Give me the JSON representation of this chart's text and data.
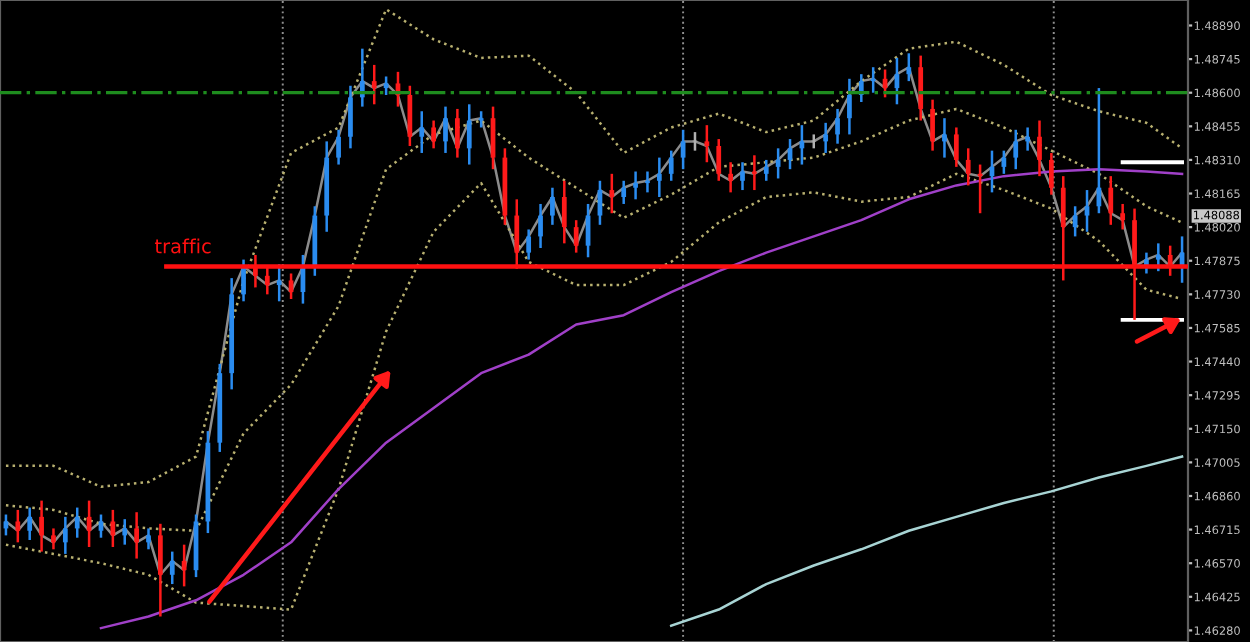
{
  "chart_data": {
    "type": "candlestick",
    "categories": [
      null,
      null,
      null,
      null,
      null,
      null,
      null,
      null,
      null,
      null,
      null,
      null,
      null,
      null,
      null,
      null,
      null,
      null,
      null,
      null,
      null,
      null,
      null,
      null,
      null,
      null,
      null,
      null,
      null,
      null,
      null,
      null,
      null,
      null,
      null,
      null,
      null,
      null,
      null,
      null,
      null,
      null,
      null,
      null,
      null,
      null,
      null,
      null,
      null,
      null,
      null,
      null,
      null,
      null,
      null,
      null,
      null,
      null,
      null,
      null,
      null,
      null,
      null,
      null,
      null,
      null,
      null,
      null,
      null,
      null,
      null,
      null,
      null,
      null,
      null,
      null,
      null,
      null,
      null,
      null,
      null,
      null,
      null,
      null,
      null,
      null,
      null,
      null,
      null,
      null,
      null,
      null,
      null,
      null,
      null,
      null,
      null,
      null,
      null,
      null
    ],
    "ohlc": [
      [
        1.4672,
        1.4678,
        1.4669,
        1.4675
      ],
      [
        1.4675,
        1.468,
        1.4666,
        1.4671
      ],
      [
        1.4671,
        1.4681,
        1.4667,
        1.4677
      ],
      [
        1.4677,
        1.4684,
        1.4662,
        1.4669
      ],
      [
        1.4669,
        1.4672,
        1.4663,
        1.4666
      ],
      [
        1.4666,
        1.4677,
        1.4661,
        1.4672
      ],
      [
        1.4672,
        1.4681,
        1.4668,
        1.4677
      ],
      [
        1.4677,
        1.4684,
        1.4664,
        1.4671
      ],
      [
        1.4671,
        1.4678,
        1.4668,
        1.4675
      ],
      [
        1.4675,
        1.468,
        1.4664,
        1.4669
      ],
      [
        1.4669,
        1.4676,
        1.4665,
        1.4672
      ],
      [
        1.4672,
        1.4679,
        1.4659,
        1.4666
      ],
      [
        1.4666,
        1.4672,
        1.4663,
        1.4669
      ],
      [
        1.4669,
        1.4674,
        1.4634,
        1.4652
      ],
      [
        1.4652,
        1.4662,
        1.4648,
        1.4658
      ],
      [
        1.4658,
        1.4665,
        1.4647,
        1.4654
      ],
      [
        1.4654,
        1.4678,
        1.4651,
        1.4675
      ],
      [
        1.4675,
        1.4714,
        1.467,
        1.4709
      ],
      [
        1.4709,
        1.4743,
        1.4705,
        1.4739
      ],
      [
        1.4739,
        1.478,
        1.4732,
        1.4773
      ],
      [
        1.4773,
        1.4788,
        1.477,
        1.4785
      ],
      [
        1.4785,
        1.479,
        1.4776,
        1.4781
      ],
      [
        1.4781,
        1.4785,
        1.4773,
        1.4777
      ],
      [
        1.4777,
        1.4786,
        1.477,
        1.4779
      ],
      [
        1.4779,
        1.4782,
        1.4771,
        1.4774
      ],
      [
        1.4774,
        1.479,
        1.4769,
        1.4785
      ],
      [
        1.4785,
        1.4811,
        1.4781,
        1.4807
      ],
      [
        1.4807,
        1.4839,
        1.48,
        1.4832
      ],
      [
        1.4832,
        1.4844,
        1.4829,
        1.4841
      ],
      [
        1.4841,
        1.4863,
        1.4836,
        1.4858
      ],
      [
        1.4858,
        1.4879,
        1.4854,
        1.4865
      ],
      [
        1.4865,
        1.4872,
        1.4855,
        1.4862
      ],
      [
        1.4862,
        1.4867,
        1.4859,
        1.4864
      ],
      [
        1.4864,
        1.4869,
        1.4854,
        1.4859
      ],
      [
        1.4859,
        1.4863,
        1.4837,
        1.4841
      ],
      [
        1.4841,
        1.4852,
        1.4834,
        1.4845
      ],
      [
        1.4845,
        1.4848,
        1.4836,
        1.4839
      ],
      [
        1.4839,
        1.4854,
        1.4834,
        1.4849
      ],
      [
        1.4849,
        1.4853,
        1.4832,
        1.4836
      ],
      [
        1.4836,
        1.4855,
        1.4829,
        1.4848
      ],
      [
        1.4848,
        1.4852,
        1.4845,
        1.4849
      ],
      [
        1.4849,
        1.4854,
        1.4827,
        1.4832
      ],
      [
        1.4832,
        1.4836,
        1.4803,
        1.4807
      ],
      [
        1.4807,
        1.4814,
        1.4784,
        1.4791
      ],
      [
        1.4791,
        1.4801,
        1.4788,
        1.4798
      ],
      [
        1.4798,
        1.4812,
        1.4793,
        1.4807
      ],
      [
        1.4807,
        1.4819,
        1.4803,
        1.4815
      ],
      [
        1.4815,
        1.4822,
        1.4795,
        1.4802
      ],
      [
        1.4802,
        1.4805,
        1.4791,
        1.4794
      ],
      [
        1.4794,
        1.4812,
        1.4789,
        1.4807
      ],
      [
        1.4807,
        1.4822,
        1.4803,
        1.4818
      ],
      [
        1.4818,
        1.4825,
        1.4808,
        1.4815
      ],
      [
        1.4815,
        1.4822,
        1.4812,
        1.4819
      ],
      [
        1.4819,
        1.4826,
        1.4814,
        1.4821
      ],
      [
        1.4821,
        1.4826,
        1.4817,
        1.4822
      ],
      [
        1.4822,
        1.4832,
        1.4815,
        1.4825
      ],
      [
        1.4825,
        1.4835,
        1.4822,
        1.4832
      ],
      [
        1.4832,
        1.4844,
        1.4827,
        1.4839
      ],
      [
        1.4839,
        1.4843,
        1.4835,
        1.4839
      ],
      [
        1.4839,
        1.4846,
        1.483,
        1.4837
      ],
      [
        1.4837,
        1.484,
        1.4822,
        1.4825
      ],
      [
        1.4825,
        1.483,
        1.4817,
        1.4822
      ],
      [
        1.4822,
        1.483,
        1.4818,
        1.4826
      ],
      [
        1.4826,
        1.4833,
        1.4818,
        1.4825
      ],
      [
        1.4825,
        1.4831,
        1.4822,
        1.4828
      ],
      [
        1.4828,
        1.4836,
        1.4823,
        1.4831
      ],
      [
        1.4831,
        1.484,
        1.4827,
        1.4836
      ],
      [
        1.4836,
        1.4846,
        1.4829,
        1.4839
      ],
      [
        1.4839,
        1.4842,
        1.4836,
        1.4839
      ],
      [
        1.4839,
        1.4847,
        1.4834,
        1.4842
      ],
      [
        1.4842,
        1.4853,
        1.4838,
        1.4849
      ],
      [
        1.4849,
        1.4866,
        1.4842,
        1.4859
      ],
      [
        1.4859,
        1.4868,
        1.4856,
        1.4865
      ],
      [
        1.4865,
        1.4871,
        1.486,
        1.4866
      ],
      [
        1.4866,
        1.487,
        1.4858,
        1.4862
      ],
      [
        1.4862,
        1.4875,
        1.4855,
        1.4868
      ],
      [
        1.4868,
        1.4877,
        1.4865,
        1.4871
      ],
      [
        1.4871,
        1.4876,
        1.4848,
        1.4853
      ],
      [
        1.4853,
        1.4857,
        1.4835,
        1.4839
      ],
      [
        1.4839,
        1.4849,
        1.4832,
        1.4842
      ],
      [
        1.4842,
        1.4845,
        1.4828,
        1.4831
      ],
      [
        1.4831,
        1.4836,
        1.482,
        1.4825
      ],
      [
        1.4825,
        1.4829,
        1.4808,
        1.4824
      ],
      [
        1.4824,
        1.4835,
        1.4817,
        1.4828
      ],
      [
        1.4828,
        1.4835,
        1.4825,
        1.4832
      ],
      [
        1.4832,
        1.4844,
        1.4827,
        1.4839
      ],
      [
        1.4839,
        1.4845,
        1.4835,
        1.4841
      ],
      [
        1.4841,
        1.4848,
        1.4824,
        1.4831
      ],
      [
        1.4831,
        1.4834,
        1.4816,
        1.4819
      ],
      [
        1.4819,
        1.4824,
        1.4779,
        1.4802
      ],
      [
        1.4802,
        1.4811,
        1.4798,
        1.4807
      ],
      [
        1.4807,
        1.4818,
        1.48,
        1.4811
      ],
      [
        1.4811,
        1.4862,
        1.4808,
        1.4819
      ],
      [
        1.4819,
        1.4824,
        1.4803,
        1.4808
      ],
      [
        1.4808,
        1.4812,
        1.4801,
        1.4805
      ],
      [
        1.4805,
        1.481,
        1.4762,
        1.4785
      ],
      [
        1.4785,
        1.4791,
        1.4782,
        1.4788
      ],
      [
        1.4788,
        1.4795,
        1.4783,
        1.479
      ],
      [
        1.479,
        1.4794,
        1.4781,
        1.4785
      ],
      [
        1.4785,
        1.4798,
        1.4778,
        1.4791
      ]
    ],
    "series": [
      {
        "type": "line",
        "color": "#8c8c8c",
        "line_style": "solid",
        "values": [
          1.4675,
          1.4671,
          1.4677,
          1.4669,
          1.4666,
          1.4672,
          1.4677,
          1.4671,
          1.4675,
          1.4669,
          1.4672,
          1.4666,
          1.4669,
          1.4652,
          1.4658,
          1.4654,
          1.4675,
          1.4709,
          1.4739,
          1.4773,
          1.4785,
          1.4781,
          1.4777,
          1.4779,
          1.4774,
          1.4785,
          1.4807,
          1.4832,
          1.4841,
          1.4858,
          1.4865,
          1.4862,
          1.4864,
          1.4859,
          1.4841,
          1.4845,
          1.4839,
          1.4849,
          1.4836,
          1.4848,
          1.4849,
          1.4832,
          1.4807,
          1.4791,
          1.4798,
          1.4807,
          1.4815,
          1.4802,
          1.4794,
          1.4807,
          1.4818,
          1.4815,
          1.4819,
          1.4821,
          1.4822,
          1.4825,
          1.4832,
          1.4839,
          1.4839,
          1.4837,
          1.4825,
          1.4822,
          1.4826,
          1.4825,
          1.4828,
          1.4831,
          1.4836,
          1.4839,
          1.4839,
          1.4842,
          1.4849,
          1.4859,
          1.4865,
          1.4866,
          1.4862,
          1.4868,
          1.4871,
          1.4853,
          1.4839,
          1.4842,
          1.4831,
          1.4825,
          1.4824,
          1.4828,
          1.4832,
          1.4839,
          1.4841,
          1.4831,
          1.4819,
          1.4802,
          1.4807,
          1.4811,
          1.4819,
          1.4808,
          1.4805,
          1.4785,
          1.4788,
          1.479,
          1.4785,
          1.4791
        ]
      },
      {
        "type": "line",
        "color": "#b8b070",
        "line_style": "dotted",
        "values": [
          1.4699,
          null,
          null,
          null,
          1.4699,
          null,
          null,
          null,
          1.469,
          null,
          null,
          null,
          1.4692,
          null,
          null,
          null,
          1.4703,
          null,
          null,
          null,
          1.4779,
          null,
          null,
          null,
          1.4834,
          null,
          null,
          null,
          1.4845,
          null,
          null,
          null,
          1.4896,
          null,
          null,
          null,
          1.4883,
          null,
          null,
          null,
          1.4875,
          null,
          null,
          null,
          1.4876,
          null,
          null,
          null,
          1.486,
          null,
          null,
          null,
          1.4834,
          null,
          null,
          null,
          1.4845,
          null,
          null,
          null,
          1.4851,
          null,
          null,
          null,
          1.4843,
          null,
          null,
          null,
          1.4848,
          null,
          null,
          null,
          1.4865,
          null,
          null,
          null,
          1.4879,
          null,
          null,
          null,
          1.4882,
          null,
          null,
          null,
          1.4872,
          null,
          null,
          null,
          1.4859,
          null,
          null,
          null,
          1.4852,
          null,
          null,
          null,
          1.4847,
          null,
          null,
          1.4836
        ]
      },
      {
        "type": "line",
        "color": "#b8b070",
        "line_style": "dotted",
        "values": [
          1.4682,
          null,
          null,
          null,
          1.468,
          null,
          null,
          null,
          1.4674,
          null,
          null,
          null,
          1.4672,
          null,
          null,
          null,
          1.4671,
          null,
          null,
          null,
          1.4713,
          null,
          null,
          null,
          1.4734,
          null,
          null,
          null,
          1.4768,
          null,
          null,
          null,
          1.4827,
          null,
          null,
          null,
          1.4842,
          null,
          null,
          null,
          1.4848,
          null,
          null,
          null,
          1.4832,
          null,
          null,
          null,
          1.4819,
          null,
          null,
          null,
          1.4806,
          null,
          null,
          null,
          1.4816,
          null,
          null,
          null,
          1.4828,
          null,
          null,
          null,
          1.483,
          null,
          null,
          null,
          1.4832,
          null,
          null,
          null,
          1.4839,
          null,
          null,
          null,
          1.4848,
          null,
          null,
          null,
          1.4853,
          null,
          null,
          null,
          1.4845,
          null,
          null,
          null,
          1.4835,
          null,
          null,
          null,
          1.4825,
          null,
          null,
          null,
          1.4811,
          null,
          null,
          1.4804
        ]
      },
      {
        "type": "line",
        "color": "#b8b070",
        "line_style": "dotted",
        "values": [
          1.4665,
          null,
          null,
          null,
          1.4661,
          null,
          null,
          null,
          1.4657,
          null,
          null,
          null,
          1.4652,
          null,
          null,
          null,
          1.464,
          null,
          null,
          null,
          null,
          null,
          null,
          null,
          1.4637,
          null,
          null,
          null,
          1.4689,
          null,
          null,
          null,
          1.4757,
          null,
          null,
          null,
          1.48,
          null,
          null,
          null,
          1.4821,
          null,
          null,
          null,
          1.4787,
          null,
          null,
          null,
          1.4777,
          null,
          null,
          null,
          1.4777,
          null,
          null,
          null,
          1.4787,
          null,
          null,
          null,
          1.4804,
          null,
          null,
          null,
          1.4815,
          null,
          null,
          null,
          1.4817,
          null,
          null,
          null,
          1.4813,
          null,
          null,
          null,
          1.4815,
          null,
          null,
          null,
          1.4825,
          null,
          null,
          null,
          1.4818,
          null,
          null,
          null,
          1.481,
          null,
          null,
          null,
          1.4796,
          null,
          null,
          null,
          1.4775,
          null,
          null,
          1.4771
        ]
      },
      {
        "type": "line",
        "color": "#a040c8",
        "line_style": "solid",
        "values": [
          null,
          null,
          null,
          null,
          null,
          null,
          null,
          null,
          1.4629,
          null,
          null,
          null,
          1.4634,
          null,
          null,
          null,
          1.4641,
          null,
          null,
          null,
          1.4652,
          null,
          null,
          null,
          1.4666,
          null,
          null,
          null,
          1.4689,
          null,
          null,
          null,
          1.4709,
          null,
          null,
          null,
          1.4724,
          null,
          null,
          null,
          1.4739,
          null,
          null,
          null,
          1.4747,
          null,
          null,
          null,
          1.476,
          null,
          null,
          null,
          1.4764,
          null,
          null,
          null,
          1.4774,
          null,
          null,
          null,
          1.4783,
          null,
          null,
          null,
          1.4791,
          null,
          null,
          null,
          1.4798,
          null,
          null,
          null,
          1.4805,
          null,
          null,
          null,
          1.4814,
          null,
          null,
          null,
          1.482,
          null,
          null,
          null,
          1.4824,
          null,
          null,
          null,
          1.4826,
          null,
          null,
          null,
          1.4827,
          null,
          null,
          null,
          1.4826,
          null,
          null,
          1.4825
        ]
      },
      {
        "type": "line",
        "color": "#ffffff",
        "line_style": "solid",
        "values": [
          null,
          null,
          null,
          null,
          null,
          null,
          null,
          null,
          null,
          null,
          null,
          null,
          null,
          null,
          null,
          null,
          null,
          null,
          null,
          null,
          null,
          null,
          null,
          null,
          null,
          null,
          null,
          null,
          null,
          null,
          null,
          null,
          null,
          null,
          null,
          null,
          null,
          null,
          null,
          null,
          null,
          null,
          null,
          null,
          null,
          null,
          null,
          null,
          null,
          null,
          null,
          null,
          null,
          null,
          null,
          null,
          null,
          null,
          null,
          null,
          null,
          null,
          null,
          null,
          null,
          null,
          null,
          null,
          null,
          null,
          null,
          null,
          null,
          null,
          null,
          null,
          null,
          null,
          null,
          null,
          null,
          null,
          null,
          null,
          null,
          null,
          null,
          null,
          null,
          null,
          null,
          null,
          null,
          null,
          1.483,
          1.483,
          1.483,
          1.483,
          1.483,
          1.483
        ]
      },
      {
        "type": "line",
        "color": "#ffffff",
        "line_style": "solid",
        "values": [
          null,
          null,
          null,
          null,
          null,
          null,
          null,
          null,
          null,
          null,
          null,
          null,
          null,
          null,
          null,
          null,
          null,
          null,
          null,
          null,
          null,
          null,
          null,
          null,
          null,
          null,
          null,
          null,
          null,
          null,
          null,
          null,
          null,
          null,
          null,
          null,
          null,
          null,
          null,
          null,
          null,
          null,
          null,
          null,
          null,
          null,
          null,
          null,
          null,
          null,
          null,
          null,
          null,
          null,
          null,
          null,
          null,
          null,
          null,
          null,
          null,
          null,
          null,
          null,
          null,
          null,
          null,
          null,
          null,
          null,
          null,
          null,
          null,
          null,
          null,
          null,
          null,
          null,
          null,
          null,
          null,
          null,
          null,
          null,
          null,
          null,
          null,
          null,
          null,
          null,
          null,
          null,
          null,
          null,
          1.4762,
          1.4762,
          1.4762,
          1.4762,
          1.4762,
          1.4762
        ]
      },
      {
        "type": "line",
        "color": "#a8d4d4",
        "line_style": "solid",
        "values": [
          null,
          null,
          null,
          null,
          null,
          null,
          null,
          null,
          null,
          null,
          null,
          null,
          null,
          null,
          null,
          null,
          null,
          null,
          null,
          null,
          null,
          null,
          null,
          null,
          null,
          null,
          null,
          null,
          null,
          null,
          null,
          null,
          null,
          null,
          null,
          null,
          null,
          null,
          null,
          null,
          null,
          null,
          null,
          null,
          null,
          null,
          null,
          null,
          null,
          null,
          null,
          null,
          null,
          null,
          null,
          null,
          1.463,
          null,
          null,
          null,
          1.4637,
          null,
          null,
          null,
          1.4648,
          null,
          null,
          null,
          1.4656,
          null,
          null,
          null,
          1.4663,
          null,
          null,
          null,
          1.4671,
          null,
          null,
          null,
          1.4677,
          null,
          null,
          null,
          1.4683,
          null,
          null,
          null,
          1.4688,
          null,
          null,
          null,
          1.4694,
          null,
          null,
          null,
          1.4699,
          null,
          null,
          1.4703
        ]
      }
    ],
    "ylim": [
      1.4623,
      1.49
    ],
    "yticks": [
      {
        "value": 1.4889,
        "label": "1.48890"
      },
      {
        "value": 1.48745,
        "label": "1.48745"
      },
      {
        "value": 1.486,
        "label": "1.48600"
      },
      {
        "value": 1.48455,
        "label": "1.48455"
      },
      {
        "value": 1.4831,
        "label": "1.48310"
      },
      {
        "value": 1.48165,
        "label": "1.48165"
      },
      {
        "value": 1.4802,
        "label": "1.48020"
      },
      {
        "value": 1.47875,
        "label": "1.47875"
      },
      {
        "value": 1.4773,
        "label": "1.47730"
      },
      {
        "value": 1.47585,
        "label": "1.47585"
      },
      {
        "value": 1.4744,
        "label": "1.47440"
      },
      {
        "value": 1.47295,
        "label": "1.47295"
      },
      {
        "value": 1.4715,
        "label": "1.47150"
      },
      {
        "value": 1.47005,
        "label": "1.47005"
      },
      {
        "value": 1.4686,
        "label": "1.46860"
      },
      {
        "value": 1.46715,
        "label": "1.46715"
      },
      {
        "value": 1.4657,
        "label": "1.46570"
      },
      {
        "value": 1.46425,
        "label": "1.46425"
      },
      {
        "value": 1.4628,
        "label": "1.46280"
      }
    ],
    "ref_lines": [
      {
        "axis": "y",
        "value": 1.486,
        "color": "#1e8c1e",
        "line_style": "dashdot"
      },
      {
        "axis": "y",
        "value": 1.4785,
        "label": "traffic",
        "color": "#ff1010",
        "line_style": "solid"
      }
    ],
    "annotations": [
      "1.48088"
    ],
    "tick_labels": "y",
    "legend": false,
    "grid": false
  }
}
